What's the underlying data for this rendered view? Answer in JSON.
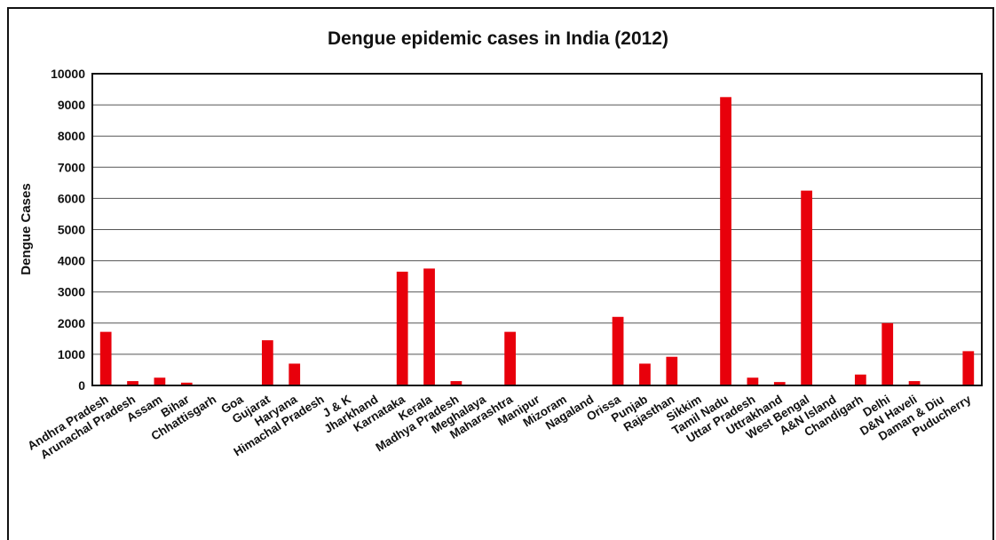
{
  "chart_data": {
    "type": "bar",
    "title": "Dengue epidemic cases in India (2012)",
    "xlabel": "",
    "ylabel": "Dengue Cases",
    "ylim": [
      0,
      10000
    ],
    "yticks": [
      "0",
      "1000",
      "2000",
      "3000",
      "4000",
      "5000",
      "6000",
      "7000",
      "8000",
      "9000",
      "10000"
    ],
    "grid": true,
    "bar_color": "#e8000b",
    "categories": [
      "Andhra Pradesh",
      "Arunachal Pradesh",
      "Assam",
      "Bihar",
      "Chhattisgarh",
      "Goa",
      "Gujarat",
      "Haryana",
      "Himachal Pradesh",
      "J & K",
      "Jharkhand",
      "Karnataka",
      "Kerala",
      "Madhya Pradesh",
      "Meghalaya",
      "Maharashtra",
      "Manipur",
      "Mizoram",
      "Nagaland",
      "Orissa",
      "Punjab",
      "Rajasthan",
      "Sikkim",
      "Tamil Nadu",
      "Uttar Pradesh",
      "Uttrakhand",
      "West Bengal",
      "A&N Island",
      "Chandigarh",
      "Delhi",
      "D&N Haveli",
      "Daman & Diu",
      "Puducherry"
    ],
    "values": [
      1720,
      140,
      250,
      90,
      0,
      20,
      1450,
      700,
      0,
      0,
      20,
      3650,
      3750,
      140,
      0,
      1720,
      0,
      0,
      0,
      2200,
      700,
      920,
      0,
      9250,
      250,
      110,
      6250,
      20,
      350,
      2000,
      140,
      20,
      1100
    ]
  }
}
